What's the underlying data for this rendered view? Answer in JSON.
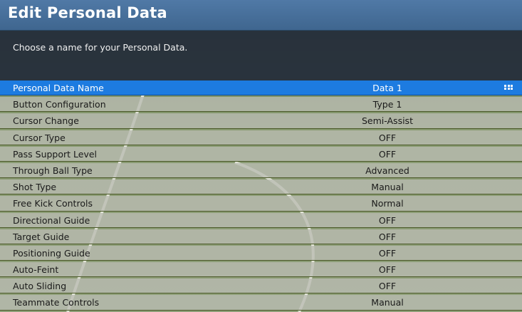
{
  "header": {
    "title": "Edit Personal Data",
    "description": "Choose a name for your Personal Data."
  },
  "settings": [
    {
      "label": "Personal Data Name",
      "value": "Data 1",
      "selected": true,
      "icon": "grid-icon"
    },
    {
      "label": "Button Configuration",
      "value": "Type 1"
    },
    {
      "label": "Cursor Change",
      "value": "Semi-Assist"
    },
    {
      "label": "Cursor Type",
      "value": "OFF"
    },
    {
      "label": "Pass Support Level",
      "value": "OFF"
    },
    {
      "label": "Through Ball Type",
      "value": "Advanced"
    },
    {
      "label": "Shot Type",
      "value": "Manual"
    },
    {
      "label": "Free Kick Controls",
      "value": "Normal"
    },
    {
      "label": "Directional Guide",
      "value": "OFF"
    },
    {
      "label": "Target Guide",
      "value": "OFF"
    },
    {
      "label": "Positioning Guide",
      "value": "OFF"
    },
    {
      "label": "Auto-Feint",
      "value": "OFF"
    },
    {
      "label": "Auto Sliding",
      "value": "OFF"
    },
    {
      "label": "Teammate Controls",
      "value": "Manual"
    }
  ],
  "colors": {
    "title_bar": "#4a729c",
    "selected_row": "#1d7be0",
    "row_background": "#b9bcb2"
  }
}
